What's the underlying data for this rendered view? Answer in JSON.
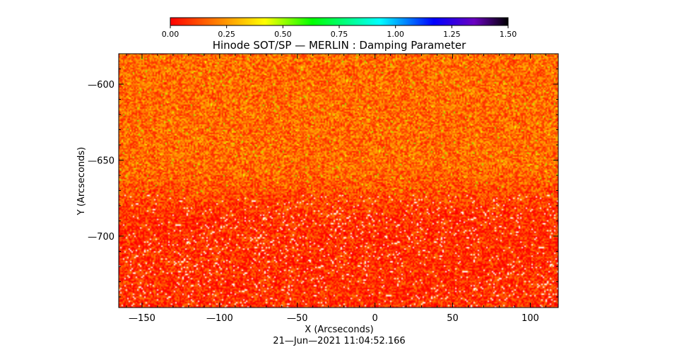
{
  "title": "Hinode SOT/SP — MERLIN : Damping Parameter",
  "timestamp": "21—Jun—2021 11:04:52.166",
  "colorbar": {
    "ticks": [
      "0.00",
      "0.25",
      "0.50",
      "0.75",
      "1.00",
      "1.25",
      "1.50"
    ],
    "range": [
      0,
      1.5
    ],
    "stops": [
      "#ff0000",
      "#ff8000",
      "#ffff00",
      "#00ff00",
      "#00ffff",
      "#0000ff",
      "#8000ff",
      "#000000"
    ]
  },
  "chart_data": {
    "type": "heatmap",
    "title": "Hinode SOT/SP — MERLIN : Damping Parameter",
    "xlabel": "X (Arcseconds)",
    "ylabel": "Y (Arcseconds)",
    "xlim": [
      -165,
      118
    ],
    "ylim": [
      -747,
      -580
    ],
    "x_ticks": [
      -150,
      -100,
      -50,
      0,
      50,
      100
    ],
    "y_ticks": [
      -600,
      -650,
      -700
    ],
    "x_tick_labels": [
      "—150",
      "—100",
      "—50",
      "0",
      "50",
      "100"
    ],
    "y_tick_labels": [
      "—600",
      "—650",
      "—700"
    ],
    "value_range": [
      0,
      1.5
    ],
    "typical_values": {
      "upper_region_y_above_-675": "0.10 - 0.35 (orange/yellow, scattered green near 0.4-0.5)",
      "lower_region_y_below_-675": "0.00 - 0.20 (red/orange, scattered white missing pixels)"
    },
    "grid": false
  }
}
